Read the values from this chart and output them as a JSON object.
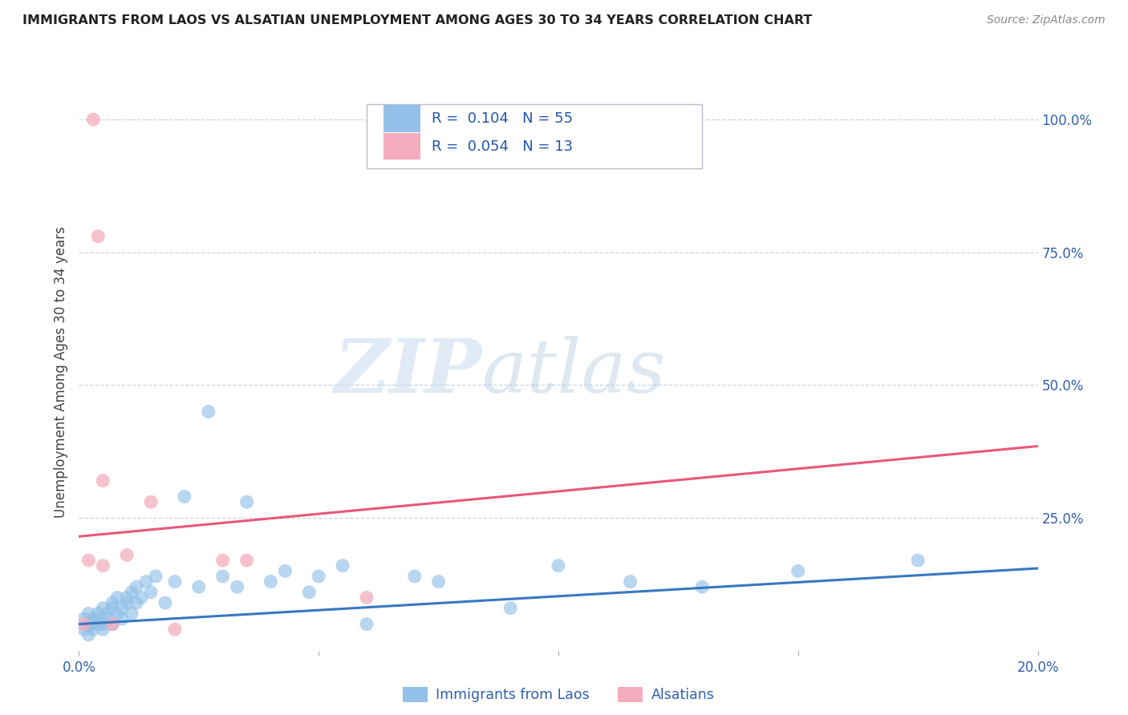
{
  "title": "IMMIGRANTS FROM LAOS VS ALSATIAN UNEMPLOYMENT AMONG AGES 30 TO 34 YEARS CORRELATION CHART",
  "source": "Source: ZipAtlas.com",
  "ylabel_left": "Unemployment Among Ages 30 to 34 years",
  "legend_label_blue": "Immigrants from Laos",
  "legend_label_pink": "Alsatians",
  "r_blue": "0.104",
  "n_blue": "55",
  "r_pink": "0.054",
  "n_pink": "13",
  "xmin": 0.0,
  "xmax": 0.2,
  "ymin": 0.0,
  "ymax": 1.05,
  "xticks": [
    0.0,
    0.05,
    0.1,
    0.15,
    0.2
  ],
  "xtick_labels": [
    "0.0%",
    "",
    "",
    "",
    "20.0%"
  ],
  "yticks_right": [
    0.0,
    0.25,
    0.5,
    0.75,
    1.0
  ],
  "ytick_labels_right": [
    "",
    "25.0%",
    "50.0%",
    "75.0%",
    "100.0%"
  ],
  "watermark_zip": "ZIP",
  "watermark_atlas": "atlas",
  "color_blue": "#92C0E8",
  "color_pink": "#F4ACBE",
  "trendline_blue": "#3878C0",
  "trendline_pink": "#E85878",
  "grid_color": "#C8D4E8",
  "background_color": "#FFFFFF",
  "blue_scatter_x": [
    0.001,
    0.001,
    0.002,
    0.002,
    0.002,
    0.003,
    0.003,
    0.003,
    0.004,
    0.004,
    0.004,
    0.005,
    0.005,
    0.005,
    0.006,
    0.006,
    0.007,
    0.007,
    0.007,
    0.008,
    0.008,
    0.009,
    0.009,
    0.01,
    0.01,
    0.011,
    0.011,
    0.012,
    0.012,
    0.013,
    0.014,
    0.015,
    0.016,
    0.018,
    0.02,
    0.022,
    0.025,
    0.027,
    0.03,
    0.033,
    0.035,
    0.04,
    0.043,
    0.048,
    0.05,
    0.055,
    0.06,
    0.07,
    0.075,
    0.09,
    0.1,
    0.115,
    0.13,
    0.15,
    0.175
  ],
  "blue_scatter_y": [
    0.04,
    0.06,
    0.05,
    0.03,
    0.07,
    0.05,
    0.04,
    0.06,
    0.07,
    0.05,
    0.06,
    0.08,
    0.05,
    0.04,
    0.06,
    0.07,
    0.08,
    0.05,
    0.09,
    0.07,
    0.1,
    0.08,
    0.06,
    0.1,
    0.09,
    0.11,
    0.07,
    0.12,
    0.09,
    0.1,
    0.13,
    0.11,
    0.14,
    0.09,
    0.13,
    0.29,
    0.12,
    0.45,
    0.14,
    0.12,
    0.28,
    0.13,
    0.15,
    0.11,
    0.14,
    0.16,
    0.05,
    0.14,
    0.13,
    0.08,
    0.16,
    0.13,
    0.12,
    0.15,
    0.17
  ],
  "pink_scatter_x": [
    0.001,
    0.002,
    0.003,
    0.004,
    0.005,
    0.005,
    0.007,
    0.01,
    0.015,
    0.02,
    0.03,
    0.035,
    0.06
  ],
  "pink_scatter_y": [
    0.05,
    0.17,
    1.0,
    0.78,
    0.32,
    0.16,
    0.05,
    0.18,
    0.28,
    0.04,
    0.17,
    0.17,
    0.1
  ],
  "blue_trend_x": [
    0.0,
    0.2
  ],
  "blue_trend_y": [
    0.05,
    0.155
  ],
  "pink_trend_x": [
    0.0,
    0.2
  ],
  "pink_trend_y": [
    0.215,
    0.385
  ]
}
